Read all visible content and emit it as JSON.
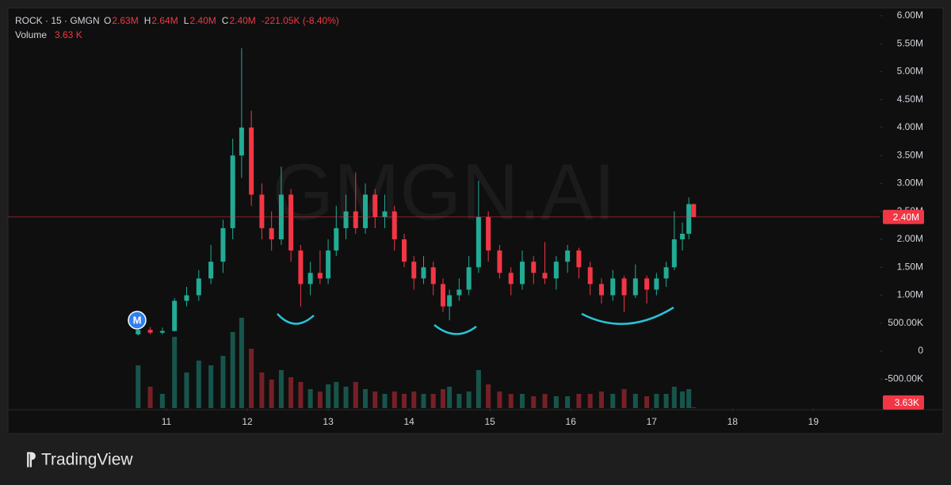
{
  "header": {
    "symbol": "ROCK · 15 · GMGN",
    "fields": [
      {
        "key": "O",
        "value": "2.63M"
      },
      {
        "key": "H",
        "value": "2.64M"
      },
      {
        "key": "L",
        "value": "2.40M"
      },
      {
        "key": "C",
        "value": "2.40M"
      }
    ],
    "change": "-221.05K (-8.40%)",
    "volume_key": "Volume",
    "volume": "3.63 K"
  },
  "watermark": "GMGN.AI",
  "marker": "M",
  "brand": "TradingView",
  "chart_data": {
    "type": "candlestick",
    "up_color": "#22ab94",
    "down_color": "#f23645",
    "x": [
      10.65,
      10.8,
      10.95,
      11.1,
      11.25,
      11.4,
      11.55,
      11.7,
      11.82,
      11.93,
      12.05,
      12.18,
      12.3,
      12.42,
      12.54,
      12.66,
      12.78,
      12.9,
      13.0,
      13.1,
      13.22,
      13.34,
      13.46,
      13.58,
      13.7,
      13.82,
      13.94,
      14.06,
      14.18,
      14.3,
      14.42,
      14.5,
      14.62,
      14.74,
      14.86,
      14.98,
      15.12,
      15.26,
      15.4,
      15.54,
      15.68,
      15.82,
      15.96,
      16.1,
      16.24,
      16.38,
      16.52,
      16.66,
      16.8,
      16.94,
      17.06,
      17.18,
      17.28,
      17.38,
      17.46,
      17.52
    ],
    "open": [
      300000,
      380000,
      330000,
      360000,
      900000,
      1000000,
      1300000,
      1600000,
      2200000,
      3500000,
      4000000,
      2800000,
      2200000,
      2000000,
      2800000,
      1800000,
      1200000,
      1400000,
      1300000,
      1800000,
      2200000,
      2500000,
      2200000,
      2800000,
      2400000,
      2500000,
      2000000,
      1600000,
      1300000,
      1500000,
      1200000,
      800000,
      1000000,
      1100000,
      1500000,
      2400000,
      1800000,
      1400000,
      1200000,
      1600000,
      1400000,
      1300000,
      1600000,
      1800000,
      1500000,
      1200000,
      1000000,
      1300000,
      1000000,
      1300000,
      1100000,
      1300000,
      1500000,
      2000000,
      2100000,
      2630000
    ],
    "high": [
      420000,
      430000,
      420000,
      950000,
      1150000,
      1450000,
      1900000,
      2350000,
      3800000,
      5420000,
      4300000,
      3000000,
      2500000,
      3300000,
      2900000,
      1900000,
      1600000,
      1800000,
      2000000,
      2600000,
      2800000,
      3200000,
      3000000,
      2900000,
      2800000,
      2600000,
      2100000,
      1700000,
      1700000,
      1600000,
      1300000,
      1100000,
      1300000,
      1700000,
      3050000,
      2500000,
      1900000,
      1500000,
      1800000,
      1700000,
      1950000,
      1700000,
      1900000,
      1850000,
      1600000,
      1300000,
      1450000,
      1350000,
      1550000,
      1350000,
      1400000,
      1600000,
      2500000,
      2300000,
      2750000,
      2640000
    ],
    "low": [
      280000,
      300000,
      300000,
      350000,
      800000,
      900000,
      1200000,
      1400000,
      2000000,
      3100000,
      2600000,
      2000000,
      1800000,
      1900000,
      1600000,
      800000,
      1000000,
      1200000,
      1200000,
      1700000,
      2000000,
      2100000,
      2100000,
      2200000,
      2200000,
      1800000,
      1500000,
      1100000,
      1200000,
      1000000,
      700000,
      550000,
      900000,
      1000000,
      1400000,
      1600000,
      1300000,
      1000000,
      1100000,
      1200000,
      1200000,
      1100000,
      1400000,
      1300000,
      1000000,
      850000,
      900000,
      700000,
      950000,
      850000,
      1000000,
      1150000,
      1450000,
      1800000,
      2000000,
      2400000
    ],
    "close": [
      380000,
      330000,
      360000,
      900000,
      1000000,
      1300000,
      1600000,
      2200000,
      3500000,
      4000000,
      2800000,
      2200000,
      2000000,
      2800000,
      1800000,
      1200000,
      1400000,
      1300000,
      1800000,
      2200000,
      2500000,
      2200000,
      2800000,
      2400000,
      2500000,
      2000000,
      1600000,
      1300000,
      1500000,
      1200000,
      800000,
      1000000,
      1100000,
      1500000,
      2400000,
      1800000,
      1400000,
      1200000,
      1600000,
      1400000,
      1300000,
      1600000,
      1800000,
      1500000,
      1200000,
      1000000,
      1300000,
      1000000,
      1300000,
      1100000,
      1300000,
      1500000,
      2000000,
      2100000,
      2630000,
      2400000
    ],
    "volume": [
      180000,
      90000,
      60000,
      300000,
      150000,
      200000,
      180000,
      220000,
      320000,
      380000,
      250000,
      150000,
      120000,
      160000,
      130000,
      110000,
      80000,
      70000,
      100000,
      110000,
      90000,
      110000,
      80000,
      70000,
      60000,
      70000,
      60000,
      70000,
      60000,
      60000,
      80000,
      90000,
      60000,
      70000,
      160000,
      100000,
      70000,
      60000,
      60000,
      50000,
      60000,
      50000,
      50000,
      60000,
      60000,
      70000,
      60000,
      80000,
      60000,
      50000,
      60000,
      60000,
      90000,
      70000,
      80000,
      3630
    ],
    "y2lim": [
      0,
      400000
    ],
    "xlim": [
      9.04,
      19.82
    ],
    "xticks": [
      11,
      12,
      13,
      14,
      15,
      16,
      17,
      18,
      19
    ],
    "ylim": [
      -1020000,
      6140000
    ],
    "yticks": [
      {
        "value": 6000000,
        "label": "6.00M"
      },
      {
        "value": 5500000,
        "label": "5.50M"
      },
      {
        "value": 5000000,
        "label": "5.00M"
      },
      {
        "value": 4500000,
        "label": "4.50M"
      },
      {
        "value": 4000000,
        "label": "4.00M"
      },
      {
        "value": 3500000,
        "label": "3.50M"
      },
      {
        "value": 3000000,
        "label": "3.00M"
      },
      {
        "value": 2500000,
        "label": "2.50M"
      },
      {
        "value": 2000000,
        "label": "2.00M"
      },
      {
        "value": 1500000,
        "label": "1.50M"
      },
      {
        "value": 1000000,
        "label": "1.00M"
      },
      {
        "value": 500000,
        "label": "500.00K"
      },
      0,
      {
        "value": -500000,
        "label": "-500.00K"
      }
    ],
    "last_price": {
      "value": 2400000,
      "label": "2.40M"
    },
    "last_volume": {
      "value": 3630,
      "label": "3.63K"
    }
  }
}
